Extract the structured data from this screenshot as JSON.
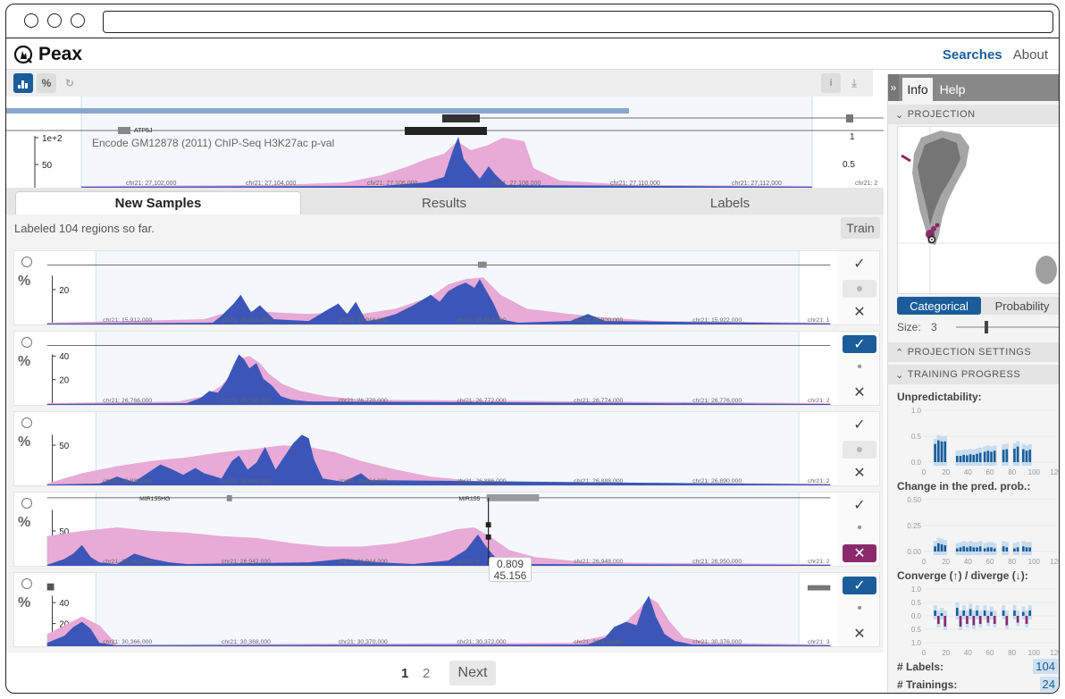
{
  "app": {
    "name": "Peax"
  },
  "nav": {
    "searches": "Searches",
    "about": "About"
  },
  "toolbar": {
    "pct_icon": "%",
    "info_icon": "i"
  },
  "colors": {
    "accent": "#1a5d9a",
    "signal": "#3b56b8",
    "prediction": "#e8aad6",
    "negative": "#8b2a6b"
  },
  "top_view": {
    "gene": "ATP5J",
    "track_label": "Encode GM12878 (2011) ChIP-Seq H3K27ac p-val",
    "y_ticks": [
      "1e+2",
      "50"
    ],
    "right_ticks": [
      "1",
      "0.5"
    ],
    "coords": [
      "chr21: 27,102,000",
      "chr21: 27,104,000",
      "chr21: 27,106,000",
      "chr21: 27,108,000",
      "chr21: 27,110,000",
      "chr21: 27,112,000",
      "chr21: 2"
    ]
  },
  "tabs": [
    "New Samples",
    "Results",
    "Labels"
  ],
  "status": {
    "labeled": "Labeled 104 regions so far.",
    "train": "Train"
  },
  "samples": [
    {
      "y_ticks": [
        "20"
      ],
      "genes": [],
      "state": "none",
      "coords": [
        "chr21: 15,912,000",
        "chr21: 15,914,000",
        "chr21: 15,916,000",
        "chr21: 15,918,000",
        "chr21: 15,920,000",
        "chr21: 15,922,000",
        "chr21: 1"
      ]
    },
    {
      "y_ticks": [
        "40",
        "20"
      ],
      "genes": [],
      "state": "positive",
      "coords": [
        "chr21: 26,766,000",
        "chr21: 26,768,000",
        "chr21: 26,770,000",
        "chr21: 26,772,000",
        "chr21: 26,774,000",
        "chr21: 26,776,000",
        "chr21: 2"
      ]
    },
    {
      "y_ticks": [
        "50"
      ],
      "genes": [],
      "state": "none",
      "coords": [
        "chr21: 26,880,000",
        "chr21: 26,882,000",
        "chr21: 26,884,000",
        "chr21: 26,886,000",
        "chr21: 26,888,000",
        "chr21: 26,890,000",
        "chr21: 2"
      ]
    },
    {
      "y_ticks": [
        "50"
      ],
      "genes": [
        "MIR155HG",
        "MIR155"
      ],
      "state": "negative",
      "coords": [
        "chr21: 26,940,000",
        "chr21: 26,942,000",
        "chr21: 26,944,000",
        "chr21: 2",
        "chr21: 26,948,000",
        "chr21: 26,950,000",
        "chr21: 2"
      ]
    },
    {
      "y_ticks": [
        "40",
        "20"
      ],
      "genes": [],
      "state": "positive",
      "coords": [
        "chr21: 30,366,000",
        "chr21: 30,368,000",
        "chr21: 30,370,000",
        "chr21: 30,372,000",
        "chr21: 30,374,000",
        "chr21: 30,376,000",
        "chr21: 3"
      ]
    }
  ],
  "tooltip": {
    "line1": "0.809",
    "line2": "45.156"
  },
  "pager": {
    "pages": [
      "1",
      "2"
    ],
    "next": "Next"
  },
  "right_panel": {
    "tabs": [
      "Info",
      "Help"
    ],
    "projection": "PROJECTION",
    "toggle": [
      "Categorical",
      "Probability"
    ],
    "size_label": "Size:",
    "size_value": "3",
    "projection_settings": "PROJECTION SETTINGS",
    "training_progress": "TRAINING PROGRESS",
    "unpredictability": "Unpredictability:",
    "change": "Change in the pred. prob.:",
    "converge": "Converge (↑) / diverge (↓):",
    "labels_stat": "# Labels:",
    "labels_value": "104",
    "trainings_stat": "# Trainings:",
    "trainings_value": "24",
    "x_ticks": [
      "0",
      "20",
      "40",
      "60",
      "80",
      "100",
      "120"
    ],
    "y_ticks_a": [
      "1.0",
      "0.5",
      "0.0"
    ],
    "y_ticks_b": [
      "0.50",
      "0.25",
      "0.00"
    ],
    "y_ticks_c": [
      "1.0",
      "0.5",
      "0.0",
      "0.5",
      "1.0"
    ]
  },
  "chart_data": [
    {
      "type": "bar",
      "title": "Unpredictability:",
      "x": [
        10,
        13,
        16,
        19,
        30,
        33,
        36,
        39,
        42,
        45,
        48,
        51,
        55,
        58,
        61,
        64,
        72,
        75,
        82,
        85,
        90,
        93,
        96
      ],
      "values": [
        0.35,
        0.42,
        0.4,
        0.4,
        0.12,
        0.12,
        0.14,
        0.13,
        0.15,
        0.14,
        0.16,
        0.18,
        0.2,
        0.22,
        0.2,
        0.22,
        0.24,
        0.25,
        0.26,
        0.3,
        0.25,
        0.22,
        0.24
      ],
      "xlim": [
        0,
        120
      ],
      "ylim": [
        0,
        1
      ]
    },
    {
      "type": "bar",
      "title": "Change in the pred. prob.:",
      "x": [
        10,
        13,
        16,
        19,
        30,
        33,
        36,
        39,
        42,
        45,
        48,
        51,
        55,
        58,
        61,
        64,
        72,
        75,
        82,
        85,
        90,
        93,
        96
      ],
      "values": [
        0.05,
        0.08,
        0.07,
        0.06,
        0.03,
        0.04,
        0.05,
        0.04,
        0.05,
        0.04,
        0.04,
        0.05,
        0.03,
        0.04,
        0.04,
        0.03,
        0.05,
        0.04,
        0.03,
        0.04,
        0.05,
        0.04,
        0.04
      ],
      "xlim": [
        0,
        120
      ],
      "ylim": [
        0,
        0.5
      ]
    },
    {
      "type": "bar",
      "title": "Converge (↑) / diverge (↓):",
      "x": [
        10,
        13,
        16,
        19,
        30,
        33,
        36,
        39,
        42,
        45,
        48,
        51,
        55,
        58,
        61,
        64,
        72,
        75,
        82,
        85,
        90,
        93,
        96
      ],
      "values": [
        0.2,
        -0.3,
        0.1,
        -0.4,
        0.3,
        -0.4,
        0.2,
        -0.3,
        0.25,
        -0.35,
        0.2,
        -0.3,
        0.2,
        -0.25,
        0.15,
        -0.3,
        0.2,
        -0.35,
        0.2,
        -0.25,
        0.15,
        -0.3,
        0.2
      ],
      "xlim": [
        0,
        120
      ],
      "ylim": [
        -1,
        1
      ]
    }
  ]
}
